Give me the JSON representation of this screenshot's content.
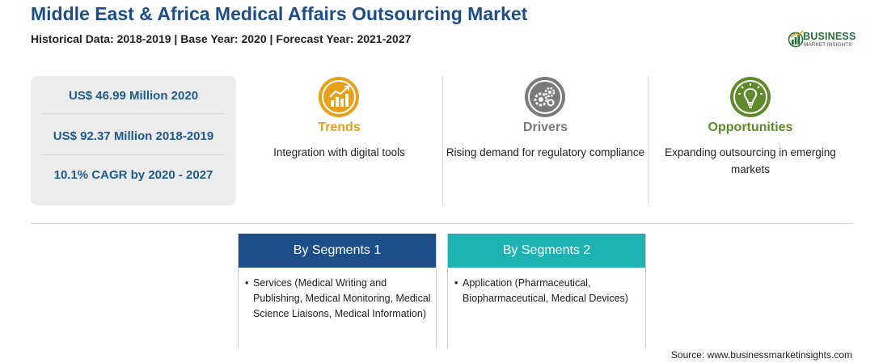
{
  "header": {
    "title": "Middle East & Africa Medical Affairs Outsourcing Market",
    "subtitle": "Historical Data: 2018-2019 | Base Year: 2020 | Forecast Year: 2021-2027"
  },
  "logo": {
    "primary": "BUSINESS",
    "secondary": "MARKET INSIGHTS"
  },
  "stats": [
    "US$ 46.99 Million 2020",
    "US$ 92.37 Million 2018-2019",
    "10.1% CAGR by 2020 - 2027"
  ],
  "insights": [
    {
      "title": "Trends",
      "text": "Integration with digital tools",
      "color": "#e8a019",
      "icon": "chart-trend-icon"
    },
    {
      "title": "Drivers",
      "text": "Rising demand for regulatory compliance",
      "color": "#7a7a7a",
      "icon": "gears-icon"
    },
    {
      "title": "Opportunities",
      "text": "Expanding outsourcing in emerging markets",
      "color": "#5f8a2b",
      "icon": "lightbulb-icon"
    }
  ],
  "segments": [
    {
      "title": "By Segments 1",
      "color": "#1d4e89",
      "bullet": "•",
      "text": "Services (Medical Writing and Publishing, Medical Monitoring, Medical Science Liaisons, Medical Information)"
    },
    {
      "title": "By Segments 2",
      "color": "#1eb2b2",
      "bullet": "•",
      "text": "Application (Pharmaceutical, Biopharmaceutical, Medical Devices)"
    }
  ],
  "source": "Source: www.businessmarketinsights.com"
}
